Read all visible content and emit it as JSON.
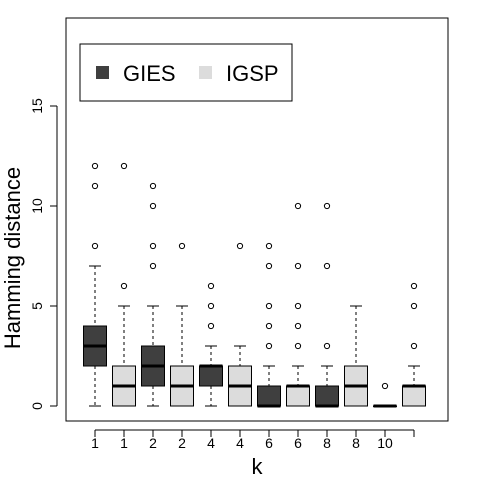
{
  "chart_data": {
    "type": "box",
    "xlabel": "k",
    "ylabel": "Hamming distance",
    "ylim": [
      -0.8,
      19.3
    ],
    "y_ticks": [
      0,
      5,
      10,
      15
    ],
    "y_tick_labels": [
      "0",
      "5",
      "10",
      "15"
    ],
    "categories": [
      "1",
      "1",
      "2",
      "2",
      "4",
      "4",
      "6",
      "6",
      "8",
      "8",
      "10",
      ""
    ],
    "x_tick_labels": [
      "1",
      "1",
      "2",
      "2",
      "4",
      "4",
      "6",
      "6",
      "8",
      "8",
      "10"
    ],
    "grid": false,
    "legend": {
      "placement": "top-left",
      "entries": [
        {
          "label": "GIES",
          "color": "#3f3f3f"
        },
        {
          "label": "IGSP",
          "color": "#dcdcdc"
        }
      ]
    },
    "boxes": [
      {
        "category": "1",
        "series": "GIES",
        "whisker_low": 0,
        "q1": 2,
        "median": 3,
        "q3": 4,
        "whisker_high": 7,
        "outliers": [
          8,
          11,
          12
        ]
      },
      {
        "category": "1",
        "series": "IGSP",
        "whisker_low": 0,
        "q1": 0,
        "median": 1,
        "q3": 2,
        "whisker_high": 5,
        "outliers": [
          6,
          12
        ]
      },
      {
        "category": "2",
        "series": "GIES",
        "whisker_low": 0,
        "q1": 1,
        "median": 2,
        "q3": 3,
        "whisker_high": 5,
        "outliers": [
          7,
          8,
          10,
          11
        ]
      },
      {
        "category": "2",
        "series": "IGSP",
        "whisker_low": 0,
        "q1": 0,
        "median": 1,
        "q3": 2,
        "whisker_high": 5,
        "outliers": [
          8
        ]
      },
      {
        "category": "4",
        "series": "GIES",
        "whisker_low": 0,
        "q1": 1,
        "median": 2,
        "q3": 2,
        "whisker_high": 3,
        "outliers": [
          4,
          5,
          6
        ]
      },
      {
        "category": "4",
        "series": "IGSP",
        "whisker_low": 0,
        "q1": 0,
        "median": 1,
        "q3": 2,
        "whisker_high": 3,
        "outliers": [
          8
        ]
      },
      {
        "category": "6",
        "series": "GIES",
        "whisker_low": 0,
        "q1": 0,
        "median": 0,
        "q3": 1,
        "whisker_high": 2,
        "outliers": [
          3,
          4,
          5,
          7,
          8
        ]
      },
      {
        "category": "6",
        "series": "IGSP",
        "whisker_low": 0,
        "q1": 0,
        "median": 1,
        "q3": 1,
        "whisker_high": 2,
        "outliers": [
          3,
          4,
          5,
          7,
          10
        ]
      },
      {
        "category": "8",
        "series": "GIES",
        "whisker_low": 0,
        "q1": 0,
        "median": 0,
        "q3": 1,
        "whisker_high": 2,
        "outliers": [
          3,
          7,
          10
        ]
      },
      {
        "category": "8",
        "series": "IGSP",
        "whisker_low": 0,
        "q1": 0,
        "median": 1,
        "q3": 2,
        "whisker_high": 5,
        "outliers": []
      },
      {
        "category": "10",
        "series": "GIES",
        "whisker_low": 0,
        "q1": 0,
        "median": 0,
        "q3": 0,
        "whisker_high": 0,
        "outliers": [
          1
        ]
      },
      {
        "category": "",
        "series": "IGSP",
        "whisker_low": 0,
        "q1": 0,
        "median": 1,
        "q3": 1,
        "whisker_high": 2,
        "outliers": [
          3,
          5,
          6
        ]
      }
    ]
  }
}
